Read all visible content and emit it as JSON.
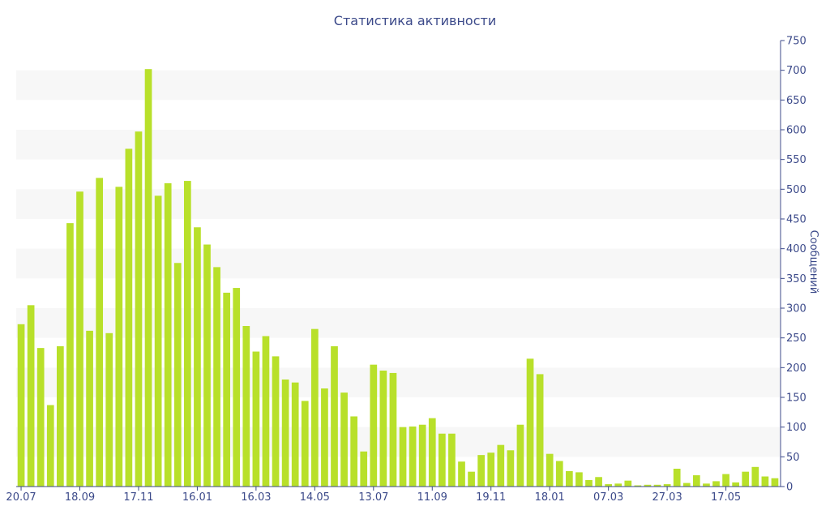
{
  "chart_data": {
    "type": "bar",
    "title": "Статистика активности",
    "ylabel": "Сообщений",
    "xlabel": "",
    "ylim": [
      0,
      750
    ],
    "y_ticks": [
      0,
      50,
      100,
      150,
      200,
      250,
      300,
      350,
      400,
      450,
      500,
      550,
      600,
      650,
      700,
      750
    ],
    "x_tick_labels": [
      "20.07",
      "18.09",
      "17.11",
      "16.01",
      "16.03",
      "14.05",
      "13.07",
      "11.09",
      "19.11",
      "18.01",
      "07.03",
      "27.03",
      "17.05"
    ],
    "x_tick_indices": [
      0,
      6,
      12,
      18,
      24,
      30,
      36,
      42,
      48,
      54,
      60,
      66,
      72
    ],
    "values": [
      273,
      305,
      233,
      137,
      236,
      443,
      496,
      262,
      519,
      258,
      504,
      568,
      597,
      702,
      489,
      510,
      376,
      514,
      436,
      407,
      369,
      326,
      334,
      270,
      227,
      253,
      219,
      180,
      175,
      144,
      265,
      165,
      236,
      158,
      118,
      59,
      205,
      195,
      191,
      100,
      101,
      104,
      115,
      89,
      89,
      42,
      25,
      53,
      57,
      70,
      61,
      104,
      215,
      189,
      55,
      43,
      26,
      24,
      11,
      16,
      4,
      5,
      10,
      2,
      3,
      3,
      4,
      30,
      6,
      19,
      5,
      9,
      21,
      7,
      25,
      33,
      17,
      14
    ],
    "grid": "horizontal alternating bands",
    "y_axis_side": "right",
    "colors": {
      "bar": "#b8e02a",
      "band": "#f7f7f7",
      "axis": "#3c4a8a"
    }
  }
}
